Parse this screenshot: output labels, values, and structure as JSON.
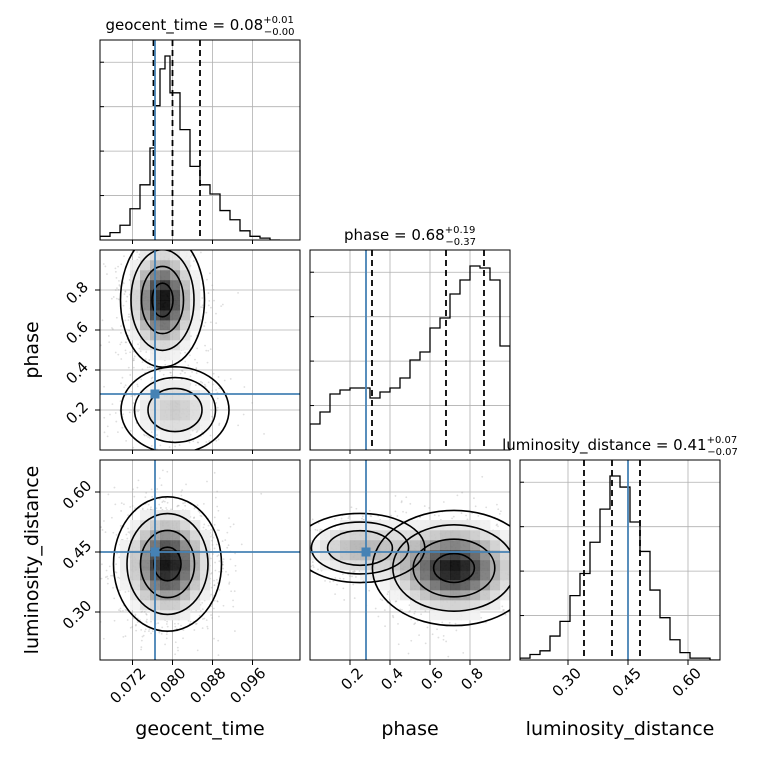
{
  "chart_data": {
    "type": "corner",
    "colors": {
      "truth": "#4682b4",
      "hist": "#000000",
      "grid": "#b0b0b0",
      "points": "#a0a0a0"
    },
    "parameters": [
      {
        "name": "geocent_time",
        "label": "geocent_time",
        "range": [
          0.0655,
          0.1055
        ],
        "ticks": [
          "0.072",
          "0.080",
          "0.088",
          "0.096"
        ],
        "tick_values": [
          0.072,
          0.08,
          0.088,
          0.096
        ],
        "truth": 0.0765,
        "title": {
          "prefix": "geocent_time = 0.08",
          "plus": "+0.01",
          "minus": "−0.00"
        },
        "quantiles": [
          0.0762,
          0.08,
          0.0855
        ],
        "hist_x": [
          0.0655,
          0.0675,
          0.0695,
          0.0715,
          0.0735,
          0.0755,
          0.0765,
          0.0775,
          0.0785,
          0.0795,
          0.0815,
          0.0835,
          0.0855,
          0.0875,
          0.0895,
          0.0915,
          0.0935,
          0.0955,
          0.0975,
          0.0995,
          0.1015
        ],
        "hist_y": [
          0.02,
          0.04,
          0.08,
          0.17,
          0.3,
          0.5,
          0.73,
          0.93,
          1.0,
          0.8,
          0.6,
          0.4,
          0.3,
          0.25,
          0.16,
          0.11,
          0.05,
          0.02,
          0.01,
          0.0
        ]
      },
      {
        "name": "phase",
        "label": "phase",
        "range": [
          0.0,
          1.0
        ],
        "ticks": [
          "0.2",
          "0.4",
          "0.6",
          "0.8"
        ],
        "tick_values": [
          0.2,
          0.4,
          0.6,
          0.8
        ],
        "truth": 0.28,
        "title": {
          "prefix": "phase = 0.68",
          "plus": "+0.19",
          "minus": "−0.37"
        },
        "quantiles": [
          0.31,
          0.68,
          0.87
        ],
        "hist_x": [
          0.0,
          0.05,
          0.1,
          0.15,
          0.2,
          0.25,
          0.3,
          0.35,
          0.4,
          0.45,
          0.5,
          0.55,
          0.6,
          0.65,
          0.7,
          0.75,
          0.8,
          0.85,
          0.9,
          0.95,
          1.0
        ],
        "hist_y": [
          0.13,
          0.19,
          0.28,
          0.3,
          0.31,
          0.31,
          0.26,
          0.29,
          0.31,
          0.36,
          0.45,
          0.49,
          0.61,
          0.66,
          0.78,
          0.85,
          0.92,
          0.91,
          0.85,
          0.52
        ]
      },
      {
        "name": "luminosity_distance",
        "label": "luminosity_distance",
        "range": [
          0.18,
          0.68
        ],
        "ticks": [
          "0.30",
          "0.45",
          "0.60"
        ],
        "tick_values": [
          0.3,
          0.45,
          0.6
        ],
        "truth": 0.45,
        "title": {
          "prefix": "luminosity_distance = 0.41",
          "plus": "+0.07",
          "minus": "−0.07"
        },
        "quantiles": [
          0.34,
          0.41,
          0.48
        ],
        "hist_x": [
          0.18,
          0.205,
          0.23,
          0.255,
          0.28,
          0.305,
          0.33,
          0.355,
          0.38,
          0.405,
          0.43,
          0.455,
          0.48,
          0.505,
          0.53,
          0.555,
          0.58,
          0.605,
          0.63,
          0.655,
          0.68
        ],
        "hist_y": [
          0.01,
          0.03,
          0.05,
          0.13,
          0.21,
          0.35,
          0.47,
          0.64,
          0.82,
          1.0,
          0.94,
          0.75,
          0.59,
          0.38,
          0.23,
          0.11,
          0.04,
          0.01,
          0.01,
          0.0
        ]
      }
    ],
    "pairs": [
      {
        "x": "geocent_time",
        "y": "phase",
        "truth": [
          0.0765,
          0.28
        ],
        "mode": [
          0.078,
          0.78
        ],
        "cores": [
          {
            "mx": 0.078,
            "my": 0.75,
            "sx": 0.0035,
            "sy": 0.14,
            "w": 0.75
          },
          {
            "mx": 0.0805,
            "my": 0.2,
            "sx": 0.005,
            "sy": 0.1,
            "w": 0.25
          }
        ]
      },
      {
        "x": "geocent_time",
        "y": "luminosity_distance",
        "truth": [
          0.0765,
          0.45
        ],
        "mode": [
          0.0785,
          0.41
        ],
        "cores": [
          {
            "mx": 0.079,
            "my": 0.42,
            "sx": 0.0045,
            "sy": 0.07,
            "w": 1.0
          }
        ]
      },
      {
        "x": "phase",
        "y": "luminosity_distance",
        "truth": [
          0.28,
          0.45
        ],
        "mode": [
          0.76,
          0.41
        ],
        "cores": [
          {
            "mx": 0.72,
            "my": 0.41,
            "sx": 0.17,
            "sy": 0.06,
            "w": 0.7
          },
          {
            "mx": 0.25,
            "my": 0.46,
            "sx": 0.15,
            "sy": 0.04,
            "w": 0.3
          }
        ]
      }
    ]
  }
}
